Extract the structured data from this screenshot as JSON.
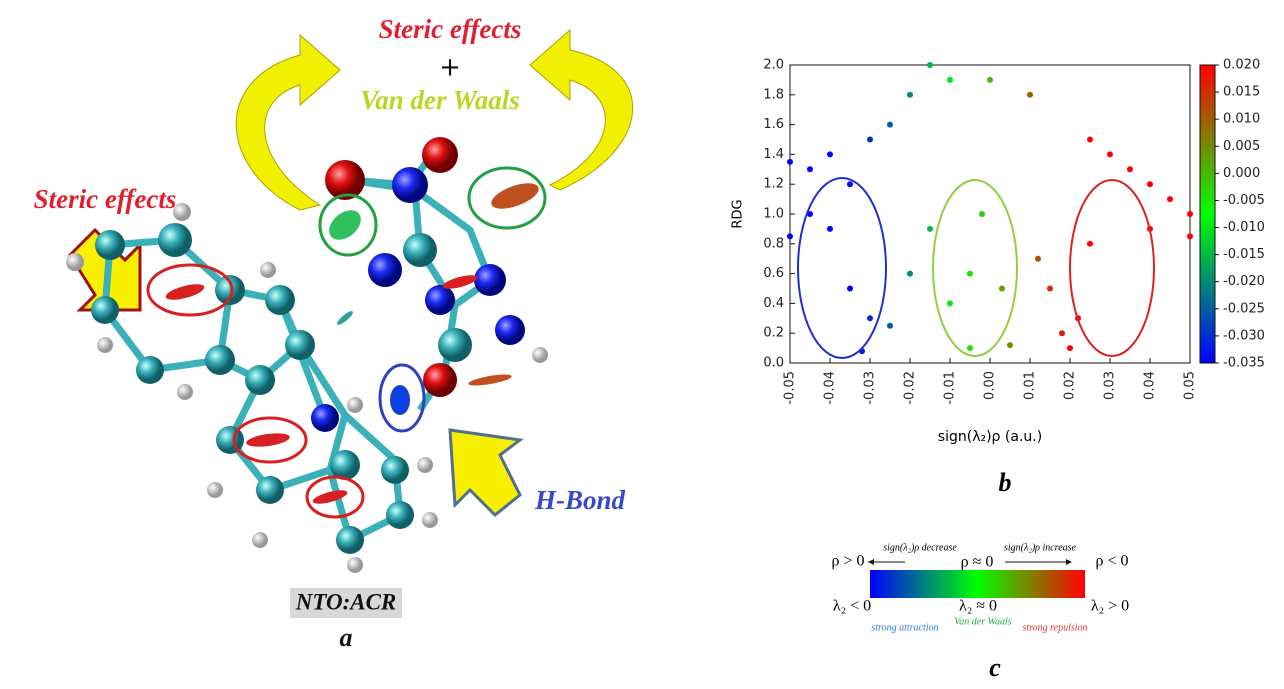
{
  "panel_a": {
    "top_steric": "Steric effects",
    "plus": "+",
    "vdw": "Van der Waals",
    "left_steric": "Steric effects",
    "hbond": "H-Bond",
    "system": "NTO:ACR",
    "label": "a"
  },
  "chart_data": {
    "type": "scatter",
    "panel_label": "b",
    "x_label": "sign(λ₂)ρ (a.u.)",
    "y_label": "RDG",
    "x": [
      -0.05,
      -0.05,
      -0.045,
      -0.045,
      -0.04,
      -0.04,
      -0.035,
      -0.035,
      -0.032,
      -0.03,
      -0.03,
      -0.025,
      -0.025,
      -0.02,
      -0.02,
      -0.015,
      -0.015,
      -0.01,
      -0.01,
      -0.005,
      -0.005,
      -0.002,
      0.0,
      0.003,
      0.005,
      0.01,
      0.012,
      0.015,
      0.018,
      0.02,
      0.022,
      0.025,
      0.025,
      0.03,
      0.035,
      0.04,
      0.04,
      0.045,
      0.05,
      0.05
    ],
    "values": [
      0.85,
      1.35,
      1.0,
      1.3,
      0.9,
      1.4,
      0.5,
      1.2,
      0.08,
      0.3,
      1.5,
      0.25,
      1.6,
      0.6,
      1.8,
      0.9,
      2.0,
      0.4,
      1.9,
      0.1,
      0.6,
      1.0,
      1.9,
      0.5,
      0.12,
      1.8,
      0.7,
      0.5,
      0.2,
      0.1,
      0.3,
      1.5,
      0.8,
      1.4,
      1.3,
      1.2,
      0.9,
      1.1,
      1.0,
      0.85
    ],
    "xlim": [
      -0.05,
      0.05
    ],
    "ylim": [
      0,
      2.0
    ],
    "xticks": [
      -0.05,
      -0.04,
      -0.03,
      -0.02,
      -0.01,
      {
        "value": 0,
        "label": "0.00"
      },
      0.01,
      0.02,
      0.03,
      0.04,
      0.05
    ],
    "yticks": [
      {
        "value": 0,
        "label": "0.0"
      },
      0.2,
      0.4,
      0.6,
      0.8,
      {
        "value": 1,
        "label": "1.0"
      },
      1.2,
      1.4,
      1.6,
      1.8,
      {
        "value": 2,
        "label": "2.0"
      }
    ],
    "colorbar": {
      "lim": [
        -0.035,
        0.02
      ],
      "colors": [
        "#0000ff",
        "#00ff00",
        "#ff0000"
      ],
      "ticks": [
        {
          "value": 0.02,
          "label": "0.020"
        },
        0.015,
        {
          "value": 0.01,
          "label": "0.010"
        },
        0.005,
        {
          "value": 0,
          "label": "0.000"
        },
        -0.005,
        {
          "value": -0.01,
          "label": "-0.010"
        },
        -0.015,
        {
          "value": -0.02,
          "label": "-0.020"
        },
        -0.025,
        {
          "value": -0.03,
          "label": "-0.030"
        },
        -0.035
      ]
    }
  },
  "panel_c": {
    "rho_pos": "ρ > 0",
    "decrease": "sign(λ₂)ρ decrease",
    "rho_zero": "ρ ≈ 0",
    "increase": "sign(λ₂)ρ increase",
    "rho_neg": "ρ < 0",
    "l2_neg": "λ₂ < 0",
    "l2_zero": "λ₂ ≈ 0",
    "l2_pos": "λ₂ > 0",
    "attraction": "strong attraction",
    "vdw": "Van der Waals",
    "repulsion": "strong repulsion",
    "label": "c"
  }
}
